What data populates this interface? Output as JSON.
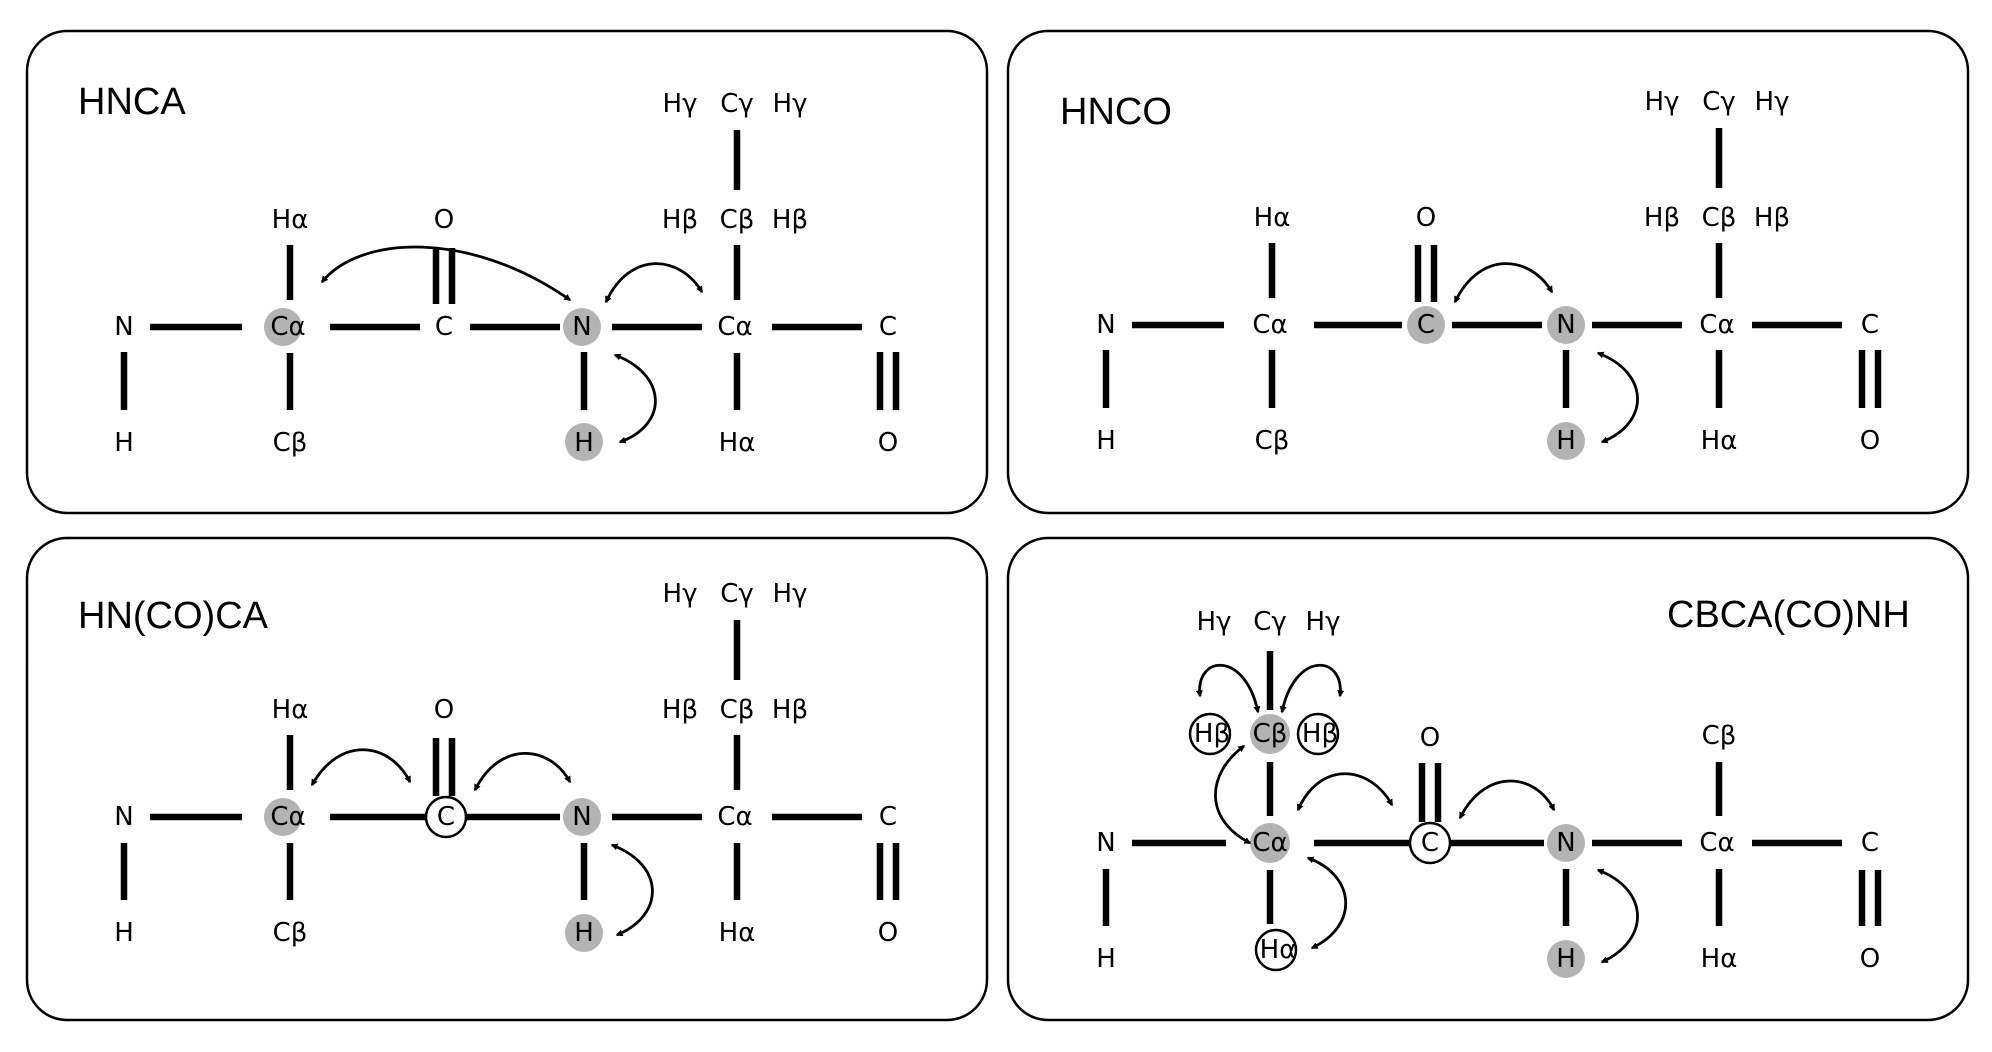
{
  "panels": {
    "hnca": {
      "title": "HNCA"
    },
    "hnco": {
      "title": "HNCO"
    },
    "hncoca": {
      "title": "HN(CO)CA"
    },
    "cbcaconh": {
      "title": "CBCA(CO)NH"
    }
  },
  "atoms": {
    "n": "N",
    "h": "H",
    "ca": "Cα",
    "cb": "Cβ",
    "cg": "Cγ",
    "ha": "Hα",
    "hb": "Hβ",
    "hg": "Hγ",
    "c": "C",
    "o": "O"
  },
  "colors": {
    "highlight": "#b3b3b3",
    "ink": "#000000"
  }
}
